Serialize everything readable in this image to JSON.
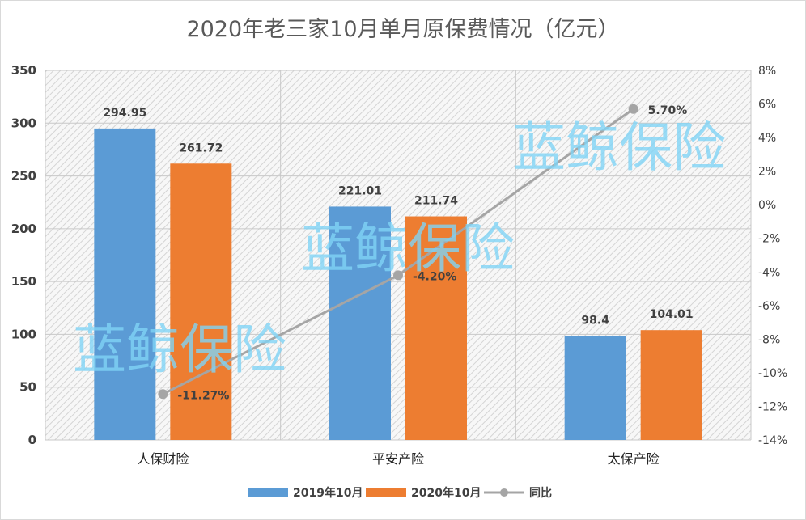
{
  "chart_data": {
    "type": "bar+line",
    "title": "2020年老三家10月单月原保费情况（亿元）",
    "categories": [
      "人保财险",
      "平安产险",
      "太保产险"
    ],
    "series": [
      {
        "name": "2019年10月",
        "type": "bar",
        "axis": "left",
        "color": "#5b9bd5",
        "values": [
          294.95,
          221.01,
          98.4
        ],
        "labels": [
          "294.95",
          "221.01",
          "98.4"
        ]
      },
      {
        "name": "2020年10月",
        "type": "bar",
        "axis": "left",
        "color": "#ed7d31",
        "values": [
          261.72,
          211.74,
          104.01
        ],
        "labels": [
          "261.72",
          "211.74",
          "104.01"
        ]
      },
      {
        "name": "同比",
        "type": "line",
        "axis": "right",
        "color": "#a5a5a5",
        "values": [
          -11.27,
          -4.2,
          5.7
        ],
        "labels": [
          "-11.27%",
          "-4.20%",
          "5.70%"
        ]
      }
    ],
    "y_left": {
      "min": 0,
      "max": 350,
      "step": 50,
      "ticks": [
        "0",
        "50",
        "100",
        "150",
        "200",
        "250",
        "300",
        "350"
      ]
    },
    "y_right": {
      "min": -14,
      "max": 8,
      "step": 2,
      "ticks": [
        "-14%",
        "-12%",
        "-10%",
        "-8%",
        "-6%",
        "-4%",
        "-2%",
        "0%",
        "2%",
        "4%",
        "6%",
        "8%"
      ]
    },
    "legend": "bottom-center"
  },
  "watermark": "蓝鲸保险"
}
